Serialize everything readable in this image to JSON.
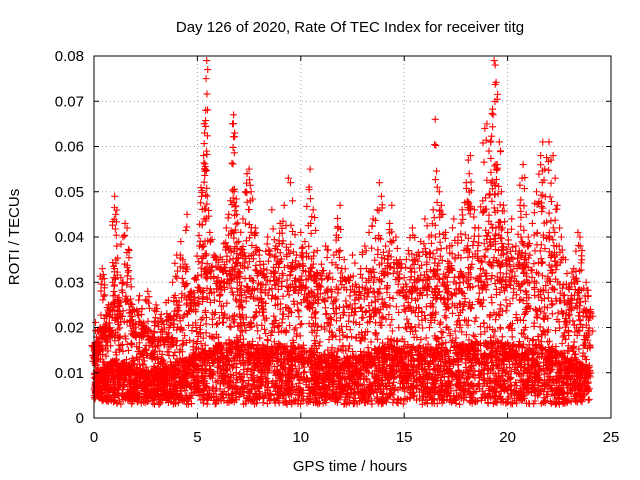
{
  "chart_data": {
    "type": "scatter",
    "title": "Day 126 of 2020, Rate Of TEC Index for receiver titg",
    "xlabel": "GPS time / hours",
    "ylabel": "ROTI / TECUs",
    "xlim": [
      0,
      25
    ],
    "ylim": [
      0,
      0.08
    ],
    "xticks": [
      0,
      5,
      10,
      15,
      20,
      25
    ],
    "xtick_labels": [
      "0",
      "5",
      "10",
      "15",
      "20",
      "25"
    ],
    "yticks": [
      0,
      0.01,
      0.02,
      0.03,
      0.04,
      0.05,
      0.06,
      0.07,
      0.08
    ],
    "ytick_labels": [
      "0",
      "0.01",
      "0.02",
      "0.03",
      "0.04",
      "0.05",
      "0.06",
      "0.07",
      "0.08"
    ],
    "grid": true,
    "marker": "plus",
    "color": "#ff0000",
    "series": [
      {
        "name": "ROTI",
        "points": [
          [
            0.0,
            0.016
          ],
          [
            0.05,
            0.012
          ],
          [
            0.1,
            0.009
          ],
          [
            0.2,
            0.014
          ],
          [
            0.3,
            0.02
          ],
          [
            0.4,
            0.033
          ],
          [
            0.5,
            0.022
          ],
          [
            0.6,
            0.011
          ],
          [
            0.7,
            0.025
          ],
          [
            0.8,
            0.018
          ],
          [
            0.9,
            0.03
          ],
          [
            1.0,
            0.049
          ],
          [
            1.05,
            0.045
          ],
          [
            1.1,
            0.038
          ],
          [
            1.2,
            0.026
          ],
          [
            1.3,
            0.031
          ],
          [
            1.4,
            0.04
          ],
          [
            1.5,
            0.043
          ],
          [
            1.6,
            0.042
          ],
          [
            1.7,
            0.037
          ],
          [
            1.8,
            0.029
          ],
          [
            1.9,
            0.024
          ],
          [
            2.0,
            0.019
          ],
          [
            2.2,
            0.027
          ],
          [
            2.4,
            0.021
          ],
          [
            2.6,
            0.028
          ],
          [
            2.8,
            0.018
          ],
          [
            3.0,
            0.025
          ],
          [
            3.2,
            0.022
          ],
          [
            3.4,
            0.017
          ],
          [
            3.6,
            0.026
          ],
          [
            3.8,
            0.03
          ],
          [
            4.0,
            0.036
          ],
          [
            4.2,
            0.039
          ],
          [
            4.4,
            0.034
          ],
          [
            4.5,
            0.045
          ],
          [
            4.7,
            0.028
          ],
          [
            4.9,
            0.031
          ],
          [
            5.1,
            0.038
          ],
          [
            5.2,
            0.049
          ],
          [
            5.3,
            0.058
          ],
          [
            5.35,
            0.063
          ],
          [
            5.4,
            0.068
          ],
          [
            5.42,
            0.075
          ],
          [
            5.45,
            0.079
          ],
          [
            5.5,
            0.077
          ],
          [
            5.6,
            0.041
          ],
          [
            5.8,
            0.036
          ],
          [
            6.0,
            0.031
          ],
          [
            6.2,
            0.035
          ],
          [
            6.4,
            0.042
          ],
          [
            6.6,
            0.048
          ],
          [
            6.7,
            0.065
          ],
          [
            6.75,
            0.067
          ],
          [
            6.8,
            0.063
          ],
          [
            6.9,
            0.045
          ],
          [
            7.0,
            0.039
          ],
          [
            7.2,
            0.044
          ],
          [
            7.4,
            0.054
          ],
          [
            7.5,
            0.055
          ],
          [
            7.6,
            0.05
          ],
          [
            7.8,
            0.042
          ],
          [
            8.0,
            0.037
          ],
          [
            8.2,
            0.034
          ],
          [
            8.4,
            0.04
          ],
          [
            8.6,
            0.046
          ],
          [
            8.8,
            0.038
          ],
          [
            9.0,
            0.043
          ],
          [
            9.2,
            0.047
          ],
          [
            9.4,
            0.053
          ],
          [
            9.5,
            0.052
          ],
          [
            9.6,
            0.048
          ],
          [
            9.8,
            0.036
          ],
          [
            10.0,
            0.041
          ],
          [
            10.2,
            0.039
          ],
          [
            10.4,
            0.051
          ],
          [
            10.45,
            0.055
          ],
          [
            10.6,
            0.046
          ],
          [
            10.8,
            0.037
          ],
          [
            11.0,
            0.034
          ],
          [
            11.2,
            0.038
          ],
          [
            11.4,
            0.032
          ],
          [
            11.6,
            0.036
          ],
          [
            11.8,
            0.042
          ],
          [
            11.9,
            0.047
          ],
          [
            12.1,
            0.035
          ],
          [
            12.3,
            0.031
          ],
          [
            12.5,
            0.036
          ],
          [
            12.7,
            0.029
          ],
          [
            12.9,
            0.033
          ],
          [
            13.1,
            0.038
          ],
          [
            13.3,
            0.041
          ],
          [
            13.5,
            0.044
          ],
          [
            13.7,
            0.046
          ],
          [
            13.8,
            0.052
          ],
          [
            13.9,
            0.049
          ],
          [
            14.1,
            0.038
          ],
          [
            14.3,
            0.043
          ],
          [
            14.4,
            0.047
          ],
          [
            14.6,
            0.04
          ],
          [
            14.8,
            0.035
          ],
          [
            15.0,
            0.031
          ],
          [
            15.2,
            0.037
          ],
          [
            15.4,
            0.042
          ],
          [
            15.6,
            0.036
          ],
          [
            15.8,
            0.039
          ],
          [
            16.0,
            0.044
          ],
          [
            16.2,
            0.04
          ],
          [
            16.4,
            0.046
          ],
          [
            16.5,
            0.066
          ],
          [
            16.6,
            0.051
          ],
          [
            16.7,
            0.05
          ],
          [
            16.8,
            0.047
          ],
          [
            17.0,
            0.041
          ],
          [
            17.2,
            0.038
          ],
          [
            17.4,
            0.044
          ],
          [
            17.6,
            0.04
          ],
          [
            17.8,
            0.046
          ],
          [
            18.0,
            0.052
          ],
          [
            18.1,
            0.057
          ],
          [
            18.2,
            0.058
          ],
          [
            18.4,
            0.046
          ],
          [
            18.6,
            0.042
          ],
          [
            18.8,
            0.048
          ],
          [
            18.9,
            0.064
          ],
          [
            19.0,
            0.065
          ],
          [
            19.1,
            0.059
          ],
          [
            19.2,
            0.052
          ],
          [
            19.3,
            0.067
          ],
          [
            19.35,
            0.079
          ],
          [
            19.4,
            0.078
          ],
          [
            19.5,
            0.056
          ],
          [
            19.6,
            0.061
          ],
          [
            19.7,
            0.05
          ],
          [
            19.8,
            0.047
          ],
          [
            20.0,
            0.041
          ],
          [
            20.2,
            0.044
          ],
          [
            20.4,
            0.038
          ],
          [
            20.6,
            0.047
          ],
          [
            20.7,
            0.053
          ],
          [
            20.75,
            0.056
          ],
          [
            20.9,
            0.045
          ],
          [
            21.0,
            0.04
          ],
          [
            21.2,
            0.043
          ],
          [
            21.4,
            0.05
          ],
          [
            21.6,
            0.058
          ],
          [
            21.7,
            0.061
          ],
          [
            21.8,
            0.055
          ],
          [
            22.0,
            0.061
          ],
          [
            22.1,
            0.057
          ],
          [
            22.2,
            0.058
          ],
          [
            22.3,
            0.053
          ],
          [
            22.4,
            0.047
          ],
          [
            22.6,
            0.04
          ],
          [
            22.8,
            0.035
          ],
          [
            23.0,
            0.029
          ],
          [
            23.2,
            0.033
          ],
          [
            23.4,
            0.041
          ],
          [
            23.5,
            0.04
          ],
          [
            23.6,
            0.037
          ],
          [
            23.8,
            0.03
          ],
          [
            23.9,
            0.027
          ],
          [
            24.0,
            0.024
          ]
        ],
        "dense_band": {
          "description": "continuous dense cloud of points",
          "x": [
            0.0,
            1.0,
            2.0,
            3.0,
            4.0,
            5.0,
            6.0,
            7.0,
            8.0,
            9.0,
            10.0,
            11.0,
            12.0,
            13.0,
            14.0,
            15.0,
            16.0,
            17.0,
            18.0,
            19.0,
            20.0,
            21.0,
            22.0,
            23.0,
            24.0
          ],
          "y_low": [
            0.004,
            0.003,
            0.003,
            0.003,
            0.003,
            0.003,
            0.003,
            0.003,
            0.003,
            0.003,
            0.003,
            0.003,
            0.003,
            0.003,
            0.003,
            0.003,
            0.003,
            0.003,
            0.003,
            0.003,
            0.003,
            0.003,
            0.003,
            0.003,
            0.004
          ],
          "y_high": [
            0.016,
            0.021,
            0.018,
            0.016,
            0.02,
            0.024,
            0.027,
            0.029,
            0.026,
            0.027,
            0.026,
            0.024,
            0.022,
            0.023,
            0.027,
            0.026,
            0.026,
            0.026,
            0.028,
            0.029,
            0.028,
            0.027,
            0.026,
            0.022,
            0.017
          ]
        }
      }
    ]
  }
}
